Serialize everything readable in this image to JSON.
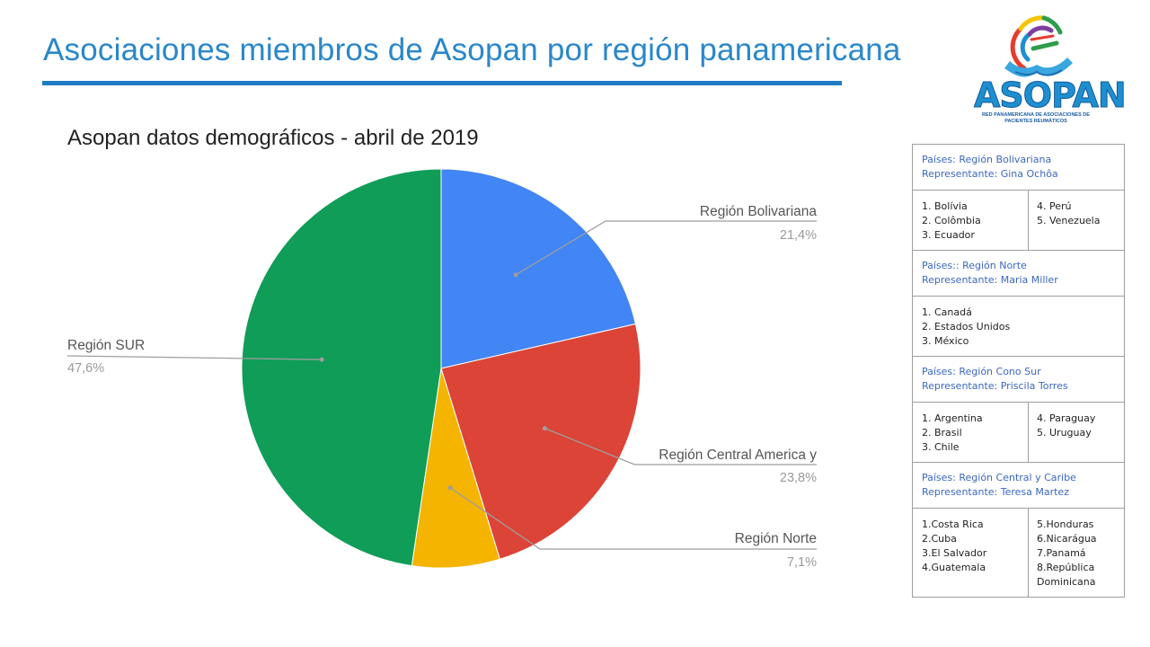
{
  "slide": {
    "title": "Asociaciones miembros de Asopan por región panamericana"
  },
  "logo": {
    "wordmark": "ASOPAN",
    "tagline": "RED PANAMERICANA DE ASOCIACIONES DE PACIENTES REUMÁTICOS"
  },
  "chart_data": {
    "type": "pie",
    "title": "Asopan datos demográficos - abril de 2019",
    "slices": [
      {
        "name": "Región Bolivariana",
        "value": 21.4,
        "label": "21,4%",
        "color": "#4285f4"
      },
      {
        "name": "Región Central America y",
        "value": 23.8,
        "label": "23,8%",
        "color": "#db4437"
      },
      {
        "name": "Región Norte",
        "value": 7.1,
        "label": "7,1%",
        "color": "#f4b400"
      },
      {
        "name": "Región SUR",
        "value": 47.6,
        "label": "47,6%",
        "color": "#0f9d58"
      }
    ],
    "start_direction": "top, clockwise",
    "legend": "callout labels"
  },
  "regions": [
    {
      "header": [
        "Países: Región Bolivariana",
        "Representante: Gina Ochôa"
      ],
      "col1": [
        "1. Bolívia",
        "2. Colômbia",
        "3. Ecuador"
      ],
      "col2": [
        "4. Perú",
        "5. Venezuela"
      ]
    },
    {
      "header": [
        "Países:: Región Norte",
        "Representante: Maria Miller"
      ],
      "col1": [
        "1. Canadá",
        "2. Estados Unidos",
        "3. México"
      ],
      "col2": []
    },
    {
      "header": [
        "Países: Región Cono Sur",
        "Representante: Priscila Torres"
      ],
      "col1": [
        "1. Argentina",
        "2. Brasil",
        "3. Chile"
      ],
      "col2": [
        "4. Paraguay",
        "5. Uruguay"
      ]
    },
    {
      "header": [
        "Países: Región Central y Caribe",
        "Representante: Teresa Martez"
      ],
      "col1": [
        "1.Costa Rica",
        "2.Cuba",
        "3.El Salvador",
        "4.Guatemala"
      ],
      "col2": [
        "5.Honduras",
        "6.Nicarágua",
        "7.Panamá",
        "8.República",
        "Dominicana"
      ]
    }
  ]
}
